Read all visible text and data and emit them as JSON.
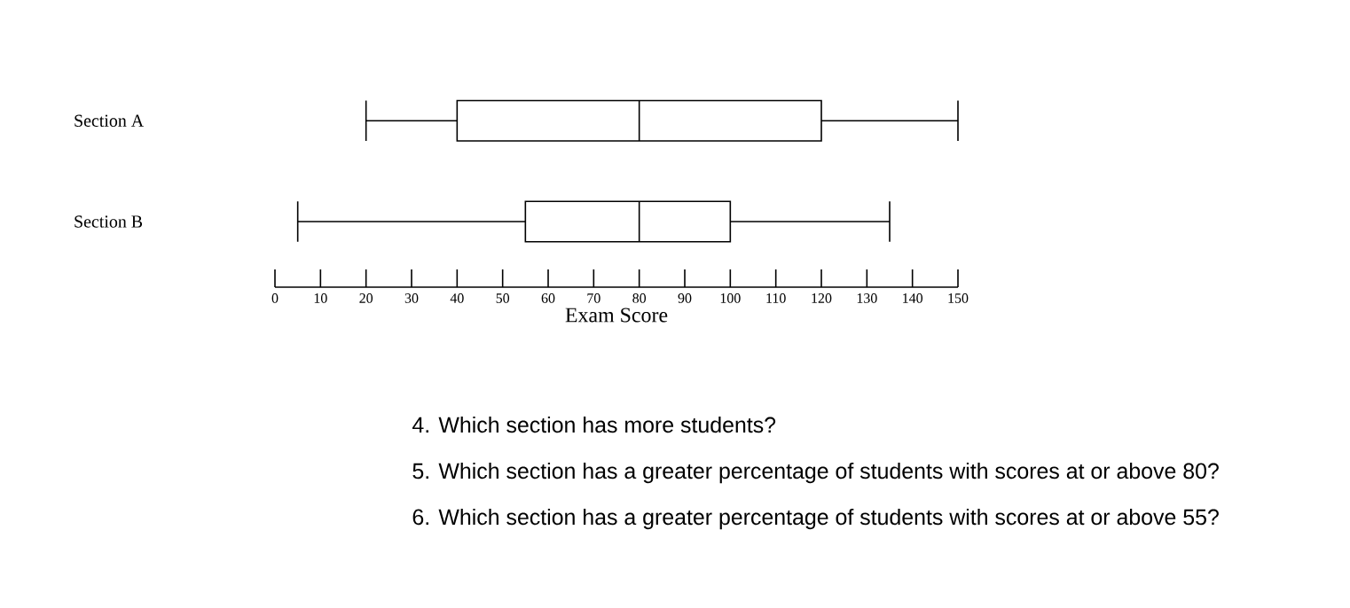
{
  "chart_data": {
    "type": "box",
    "orientation": "horizontal",
    "categories": [
      "Section A",
      "Section B"
    ],
    "boxes": [
      {
        "low": 20,
        "q1": 40,
        "median": 80,
        "q3": 120,
        "high": 150
      },
      {
        "low": 5,
        "q1": 55,
        "median": 80,
        "q3": 100,
        "high": 135
      }
    ],
    "xlim": [
      0,
      150
    ],
    "xticks": [
      0,
      10,
      20,
      30,
      40,
      50,
      60,
      70,
      80,
      90,
      100,
      110,
      120,
      130,
      140,
      150
    ],
    "xlabel": "Exam Score",
    "annotations": [
      "4. Which section has more students?",
      "5. Which section has a greater percentage of students with scores at or above 80?",
      "6. Which section has a greater percentage of students with scores at or above 55?"
    ]
  }
}
